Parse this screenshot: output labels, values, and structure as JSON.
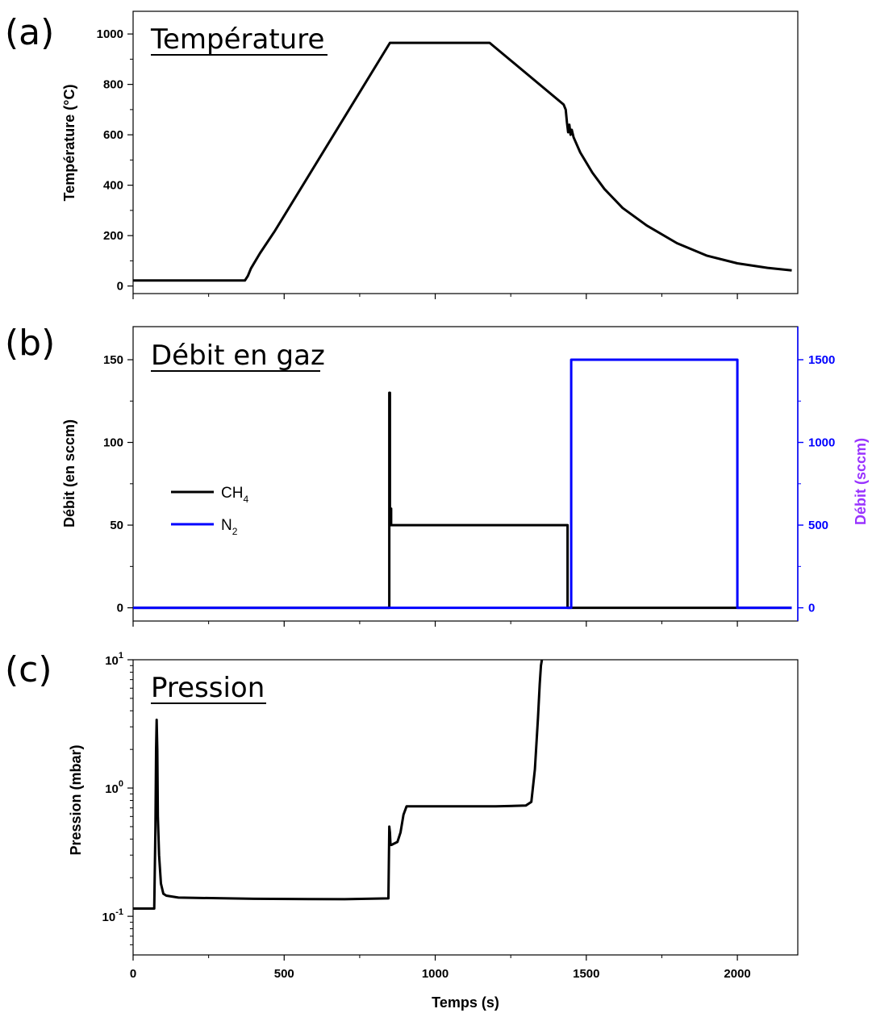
{
  "chart_data": [
    {
      "type": "line",
      "panel_tag": "(a)",
      "title": "Température",
      "xlabel": "",
      "ylabel": "Température (°C)",
      "xlim": [
        0,
        2200
      ],
      "ylim": [
        -30,
        1090
      ],
      "yticks": [
        "0",
        "200",
        "400",
        "600",
        "800",
        "1000"
      ],
      "ytick_values": [
        0,
        200,
        400,
        600,
        800,
        1000
      ],
      "grid": false,
      "series": [
        {
          "color": "#000000",
          "x": [
            0,
            370,
            380,
            390,
            420,
            470,
            850,
            1180,
            1425,
            1432,
            1436,
            1440,
            1444,
            1448,
            1452,
            1458,
            1480,
            1520,
            1560,
            1620,
            1700,
            1800,
            1900,
            2000,
            2100,
            2180
          ],
          "y": [
            22,
            22,
            40,
            70,
            130,
            220,
            965,
            965,
            720,
            700,
            650,
            610,
            640,
            600,
            620,
            590,
            530,
            450,
            385,
            310,
            240,
            170,
            120,
            90,
            72,
            62
          ]
        }
      ]
    },
    {
      "type": "line",
      "panel_tag": "(b)",
      "title": "Débit en gaz",
      "xlabel": "",
      "ylabel": "Débit (en sccm)",
      "ylabel_right": "Débit (sccm)",
      "xlim": [
        0,
        2200
      ],
      "ylim": [
        -8,
        170
      ],
      "ylim_right": [
        -80,
        1700
      ],
      "yticks": [
        "0",
        "50",
        "100",
        "150"
      ],
      "ytick_values": [
        0,
        50,
        100,
        150
      ],
      "yticks_right": [
        "0",
        "500",
        "1000",
        "1500"
      ],
      "ytick_values_right": [
        0,
        500,
        1000,
        1500
      ],
      "right_axis_color": "#0000ff",
      "right_label_color": "#9933ff",
      "legend": {
        "placement": "center-left",
        "entries": [
          {
            "label": "CH",
            "sub": "4"
          },
          {
            "label": "N",
            "sub": "2"
          }
        ]
      },
      "grid": false,
      "series": [
        {
          "name": "CH4",
          "axis": "left",
          "color": "#000000",
          "x": [
            0,
            848,
            848,
            850,
            850,
            852,
            852,
            854,
            854,
            1438,
            1438,
            2180
          ],
          "y": [
            0,
            0,
            130,
            130,
            50,
            50,
            60,
            60,
            50,
            50,
            0,
            0
          ]
        },
        {
          "name": "N2",
          "axis": "right",
          "color": "#0000ff",
          "x": [
            0,
            1450,
            1450,
            2000,
            2000,
            2180
          ],
          "y": [
            0,
            0,
            1500,
            1500,
            0,
            0
          ]
        }
      ]
    },
    {
      "type": "line",
      "panel_tag": "(c)",
      "title": "Pression",
      "xlabel": "Temps (s)",
      "ylabel": "Pression (mbar)",
      "yscale": "log",
      "xlim": [
        0,
        2200
      ],
      "ylim": [
        0.05,
        10
      ],
      "xticks": [
        "0",
        "500",
        "1000",
        "1500",
        "2000"
      ],
      "xtick_values": [
        0,
        500,
        1000,
        1500,
        2000
      ],
      "yticks": [
        {
          "base": "10",
          "exp": "-1"
        },
        {
          "base": "10",
          "exp": "0"
        },
        {
          "base": "10",
          "exp": "1"
        }
      ],
      "ytick_values": [
        0.1,
        1,
        10
      ],
      "grid": false,
      "series": [
        {
          "color": "#000000",
          "x": [
            0,
            70,
            74,
            76,
            78,
            80,
            82,
            86,
            92,
            100,
            110,
            150,
            400,
            700,
            845,
            848,
            850,
            852,
            855,
            875,
            885,
            895,
            905,
            920,
            1000,
            1200,
            1300,
            1318,
            1330,
            1340,
            1346,
            1350,
            1353
          ],
          "y": [
            0.115,
            0.115,
            0.5,
            2.0,
            3.4,
            2.0,
            0.6,
            0.3,
            0.18,
            0.15,
            0.145,
            0.14,
            0.137,
            0.136,
            0.138,
            0.5,
            0.45,
            0.36,
            0.36,
            0.38,
            0.45,
            0.62,
            0.72,
            0.72,
            0.72,
            0.72,
            0.73,
            0.78,
            1.4,
            3.5,
            6.5,
            9.0,
            10.0
          ]
        }
      ]
    }
  ]
}
